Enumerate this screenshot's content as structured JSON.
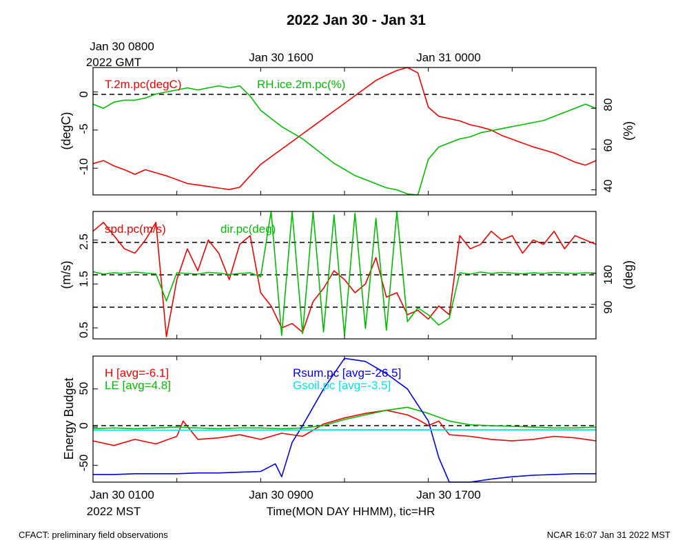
{
  "title": "2022 Jan 30 - Jan 31",
  "top_axis": {
    "first_label": "Jan 30 0800",
    "first_sublabel": "2022 GMT",
    "labels": [
      "Jan 30 1600",
      "Jan 31 0000"
    ]
  },
  "bottom_axis": {
    "first_label": "Jan 30 0100",
    "first_sublabel": "2022 MST",
    "labels": [
      "Jan 30 0900",
      "Jan 30 1700"
    ],
    "xlabel": "Time(MON DAY HHMM), tic=HR"
  },
  "footer": {
    "left": "CFACT: preliminary field observations",
    "right": "NCAR 16:07 Jan 31 2022 MST"
  },
  "colors": {
    "red": "#ee0000",
    "green": "#00bb00",
    "blue": "#0000dd",
    "cyan": "#00e5e5"
  },
  "chart_data": [
    {
      "type": "line",
      "panel": "temperature-humidity",
      "x_unit": "hours since Jan 30 0100 MST",
      "xlim": [
        0,
        24
      ],
      "ylabel": "(degC)",
      "ylim": [
        -13.5,
        3.2
      ],
      "yticks": [
        0,
        -5,
        -10
      ],
      "ylabel_right": "(%)",
      "ylim_right": [
        37.5,
        100
      ],
      "yticks_right": [
        80,
        60,
        40
      ],
      "reference_lines": [
        0
      ],
      "series": [
        {
          "name": "T.2m.pc(degC)",
          "axis": "left",
          "color": "red",
          "x": [
            0,
            0.5,
            1,
            1.5,
            2,
            2.5,
            3,
            3.5,
            4,
            4.5,
            5,
            5.5,
            6,
            6.5,
            7,
            7.5,
            8,
            8.5,
            9,
            9.5,
            10,
            10.5,
            11,
            11.5,
            12,
            12.5,
            13,
            13.5,
            14,
            14.5,
            15,
            15.5,
            16,
            16.5,
            17,
            17.5,
            18,
            18.5,
            19,
            19.5,
            20,
            20.5,
            21,
            21.5,
            22,
            22.5,
            23,
            23.5,
            24
          ],
          "values": [
            -9.4,
            -9.0,
            -9.7,
            -10.2,
            -10.8,
            -10.2,
            -10.6,
            -11.0,
            -11.5,
            -12.0,
            -12.2,
            -12.4,
            -12.6,
            -12.8,
            -12.5,
            -11.0,
            -9.5,
            -8.5,
            -7.5,
            -6.5,
            -5.5,
            -4.5,
            -3.5,
            -2.5,
            -1.5,
            -0.5,
            0.5,
            1.5,
            2.2,
            2.8,
            3.2,
            2.5,
            -2.0,
            -3.2,
            -3.5,
            -3.8,
            -4.3,
            -4.6,
            -5.0,
            -5.7,
            -6.2,
            -6.7,
            -7.2,
            -7.6,
            -8.0,
            -8.6,
            -9.2,
            -9.6,
            -9.0
          ]
        },
        {
          "name": "RH.ice.2m.pc(%)",
          "axis": "right",
          "color": "green",
          "x": [
            0,
            0.5,
            1,
            1.5,
            2,
            2.5,
            3,
            3.5,
            4,
            4.5,
            5,
            5.5,
            6,
            6.5,
            7,
            7.5,
            8,
            8.5,
            9,
            9.5,
            10,
            10.5,
            11,
            11.5,
            12,
            12.5,
            13,
            13.5,
            14,
            14.5,
            15,
            15.5,
            16,
            16.5,
            17,
            17.5,
            18,
            18.5,
            19,
            19.5,
            20,
            20.5,
            21,
            21.5,
            22,
            22.5,
            23,
            23.5,
            24
          ],
          "values": [
            82,
            80,
            83,
            84,
            84,
            85,
            87,
            88,
            89,
            90,
            89,
            90,
            91,
            90,
            91,
            86,
            79,
            75,
            71,
            68,
            65,
            61,
            57,
            53,
            50,
            47,
            45,
            43,
            41,
            40,
            38,
            37,
            55,
            61,
            63,
            65,
            66,
            68,
            69,
            70,
            71,
            72,
            73,
            74,
            76,
            78,
            80,
            82,
            80
          ]
        }
      ]
    },
    {
      "type": "line",
      "panel": "wind",
      "x_unit": "hours since Jan 30 0100 MST",
      "xlim": [
        0,
        24
      ],
      "ylabel": "(m/s)",
      "ylim": [
        0.25,
        3.15
      ],
      "yticks": [
        0.5,
        1.5,
        2.5
      ],
      "ylabel_right": "(deg)",
      "ylim_right": [
        -10,
        360
      ],
      "yticks_right": [
        180,
        90
      ],
      "reference_lines": [
        2.5,
        1.5,
        1.0
      ],
      "series": [
        {
          "name": "spd.pc(m/s)",
          "axis": "left",
          "color": "red",
          "x": [
            0,
            0.5,
            1,
            1.5,
            2,
            2.5,
            3,
            3.5,
            4,
            4.5,
            5,
            5.5,
            6,
            6.5,
            7,
            7.5,
            8,
            8.5,
            9,
            9.5,
            10,
            10.5,
            11,
            11.5,
            12,
            12.5,
            13,
            13.5,
            14,
            14.5,
            15,
            15.5,
            16,
            16.5,
            17,
            17.5,
            18,
            18.5,
            19,
            19.5,
            20,
            20.5,
            21,
            21.5,
            22,
            22.5,
            23,
            23.5,
            24
          ],
          "values": [
            2.7,
            2.9,
            2.6,
            2.3,
            2.2,
            2.5,
            2.9,
            0.3,
            1.6,
            2.3,
            1.8,
            2.5,
            2.2,
            1.6,
            2.4,
            2.6,
            1.3,
            1.0,
            0.5,
            0.6,
            0.4,
            1.1,
            1.4,
            1.8,
            1.6,
            1.3,
            1.5,
            2.1,
            1.2,
            1.3,
            0.8,
            0.9,
            0.7,
            1.0,
            0.8,
            2.6,
            2.3,
            2.4,
            2.7,
            2.5,
            2.6,
            2.2,
            2.5,
            2.4,
            2.7,
            2.3,
            2.6,
            2.5,
            2.4
          ]
        },
        {
          "name": "dir.pc(deg)",
          "axis": "right",
          "color": "green",
          "x": [
            0,
            0.5,
            1,
            1.5,
            2,
            2.5,
            3,
            3.5,
            4,
            4.5,
            5,
            5.5,
            6,
            6.5,
            7,
            7.5,
            8,
            8.5,
            9,
            9.5,
            10,
            10.5,
            11,
            11.5,
            12,
            12.5,
            13,
            13.5,
            14,
            14.5,
            15,
            15.5,
            16,
            16.5,
            17,
            17.5,
            18,
            18.5,
            19,
            19.5,
            20,
            20.5,
            21,
            21.5,
            22,
            22.5,
            23,
            23.5,
            24
          ],
          "values": [
            185,
            178,
            182,
            180,
            184,
            181,
            179,
            100,
            182,
            180,
            178,
            183,
            181,
            177,
            180,
            182,
            170,
            360,
            0,
            360,
            5,
            360,
            10,
            350,
            0,
            355,
            20,
            340,
            15,
            360,
            40,
            80,
            60,
            30,
            50,
            182,
            178,
            184,
            180,
            183,
            181,
            179,
            182,
            180,
            183,
            181,
            180,
            182,
            181
          ]
        }
      ]
    },
    {
      "type": "line",
      "panel": "energy-budget",
      "x_unit": "hours since Jan 30 0100 MST",
      "xlim": [
        0,
        24
      ],
      "ylabel": "Energy Budget",
      "ylim": [
        -72,
        93
      ],
      "yticks": [
        50,
        0,
        -50
      ],
      "reference_lines": [
        0
      ],
      "series": [
        {
          "name": "H [avg=-6.1]",
          "color": "red",
          "x": [
            0,
            1,
            2,
            3,
            4,
            4.3,
            5,
            6,
            7,
            8,
            9,
            10,
            11,
            12,
            13,
            14,
            15,
            15.5,
            16,
            16.5,
            17,
            18,
            19,
            20,
            21,
            22,
            23,
            24
          ],
          "values": [
            -18,
            -24,
            -16,
            -22,
            -12,
            8,
            -16,
            -14,
            -10,
            -16,
            -8,
            -12,
            4,
            12,
            18,
            22,
            16,
            10,
            2,
            8,
            -10,
            -12,
            -16,
            -18,
            -16,
            -12,
            -14,
            -18
          ]
        },
        {
          "name": "LE [avg=4.8]",
          "color": "green",
          "x": [
            0,
            1,
            2,
            3,
            4,
            5,
            6,
            7,
            8,
            9,
            10,
            11,
            12,
            13,
            14,
            15,
            16,
            17,
            18,
            19,
            20,
            21,
            22,
            23,
            24
          ],
          "values": [
            -2,
            -1,
            -2,
            -1,
            0,
            -1,
            -2,
            -1,
            -1,
            -2,
            -1,
            2,
            10,
            16,
            22,
            26,
            18,
            8,
            3,
            2,
            1,
            0,
            -1,
            -1,
            0
          ]
        },
        {
          "name": "Rsum.pc [avg=-26.5]",
          "color": "blue",
          "x": [
            0,
            1,
            2,
            3,
            4,
            5,
            6,
            7,
            8,
            8.7,
            9,
            9.5,
            10,
            11,
            12,
            13,
            14,
            15,
            16,
            16.5,
            17,
            18,
            19,
            20,
            21,
            22,
            23,
            24
          ],
          "values": [
            -62,
            -62,
            -61,
            -61,
            -61,
            -60,
            -60,
            -59,
            -58,
            -48,
            -65,
            -20,
            2,
            50,
            90,
            86,
            70,
            50,
            8,
            -40,
            -72,
            -72,
            -68,
            -65,
            -63,
            -62,
            -61,
            -61
          ]
        },
        {
          "name": "Gsoil.pc [avg=-3.5]",
          "color": "cyan",
          "x": [
            0,
            6,
            12,
            18,
            24
          ],
          "values": [
            -4,
            -4,
            -3.5,
            -3.5,
            -3.5
          ]
        }
      ]
    }
  ]
}
